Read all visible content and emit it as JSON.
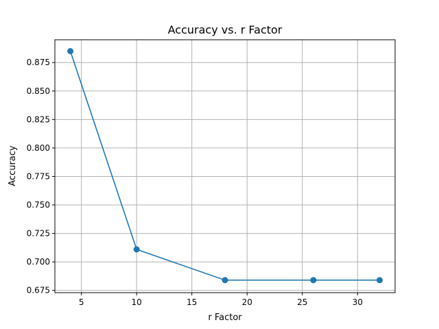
{
  "chart_data": {
    "type": "line",
    "title": "Accuracy vs. r Factor",
    "xlabel": "r Factor",
    "ylabel": "Accuracy",
    "x": [
      4,
      10,
      18,
      26,
      32
    ],
    "series": [
      {
        "values": [
          0.885,
          0.711,
          0.684,
          0.684,
          0.684
        ]
      }
    ],
    "xlim": [
      2.6,
      33.4
    ],
    "ylim": [
      0.673,
      0.895
    ],
    "xticks": [
      5,
      10,
      15,
      20,
      25,
      30
    ],
    "xtick_labels": [
      "5",
      "10",
      "15",
      "20",
      "25",
      "30"
    ],
    "yticks": [
      0.675,
      0.7,
      0.725,
      0.75,
      0.775,
      0.8,
      0.825,
      0.85,
      0.875
    ],
    "ytick_labels": [
      "0.675",
      "0.700",
      "0.725",
      "0.750",
      "0.775",
      "0.800",
      "0.825",
      "0.850",
      "0.875"
    ],
    "grid": true,
    "marker": "circle",
    "line_color": "#1f77b4",
    "grid_color": "#b0b0b0"
  }
}
